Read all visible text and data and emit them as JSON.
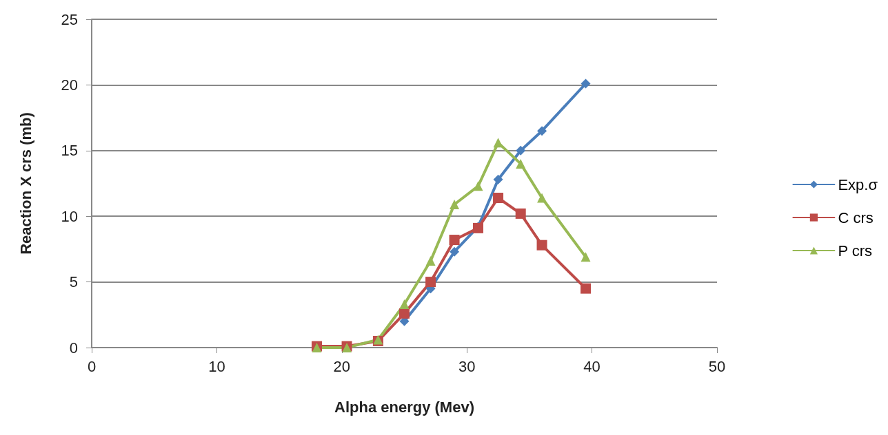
{
  "chart_data": {
    "type": "line",
    "xlabel": "Alpha energy (Mev)",
    "ylabel": "Reaction X crs (mb)",
    "x": [
      18,
      20.4,
      22.9,
      25,
      27.1,
      29,
      30.9,
      32.5,
      34.3,
      36,
      39.5
    ],
    "series": [
      {
        "name": "Exp.σ",
        "color": "#4a7ebb",
        "marker": "diamond",
        "values": [
          null,
          null,
          null,
          2,
          4.5,
          7.3,
          9.2,
          12.8,
          15,
          16.5,
          20.1
        ]
      },
      {
        "name": "C crs",
        "color": "#be4b48",
        "marker": "square",
        "values": [
          0.1,
          0.1,
          0.5,
          2.6,
          5,
          8.2,
          9.1,
          11.4,
          10.2,
          7.8,
          4.5
        ]
      },
      {
        "name": "P crs",
        "color": "#98b954",
        "marker": "triangle",
        "values": [
          0,
          0,
          0.6,
          3.3,
          6.6,
          10.9,
          12.3,
          15.6,
          14,
          11.4,
          6.9
        ]
      }
    ],
    "xlim": [
      0,
      50
    ],
    "xticks": [
      0,
      10,
      20,
      30,
      40,
      50
    ],
    "ylim": [
      0,
      25
    ],
    "yticks": [
      0,
      5,
      10,
      15,
      20,
      25
    ],
    "grid": "y",
    "legend": "right",
    "line_style": "solid"
  }
}
